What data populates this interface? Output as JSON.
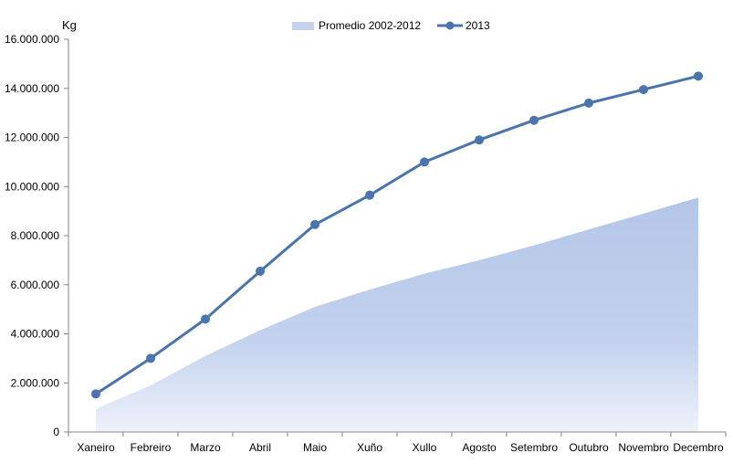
{
  "chart_data": {
    "type": "area",
    "unit_label": "Kg",
    "categories": [
      "Xaneiro",
      "Febreiro",
      "Marzo",
      "Abril",
      "Maio",
      "Xuño",
      "Xullo",
      "Agosto",
      "Setembro",
      "Outubro",
      "Novembro",
      "Decembro"
    ],
    "y_ticks": [
      "0",
      "2.000.000",
      "4.000.000",
      "6.000.000",
      "8.000.000",
      "10.000.000",
      "12.000.000",
      "14.000.000",
      "16.000.000"
    ],
    "ylim": [
      0,
      16000000
    ],
    "grid": false,
    "legend_position": "top-center",
    "series": [
      {
        "name": "Promedio 2002-2012",
        "kind": "area",
        "color": "#b4c6e8",
        "values": [
          950000,
          1900000,
          3100000,
          4150000,
          5100000,
          5800000,
          6450000,
          7000000,
          7600000,
          8250000,
          8900000,
          9550000
        ]
      },
      {
        "name": "2013",
        "kind": "line",
        "color": "#4a74ae",
        "values": [
          1550000,
          3000000,
          4600000,
          6550000,
          8450000,
          9650000,
          11000000,
          11900000,
          12700000,
          13400000,
          13950000,
          14500000
        ]
      }
    ]
  }
}
